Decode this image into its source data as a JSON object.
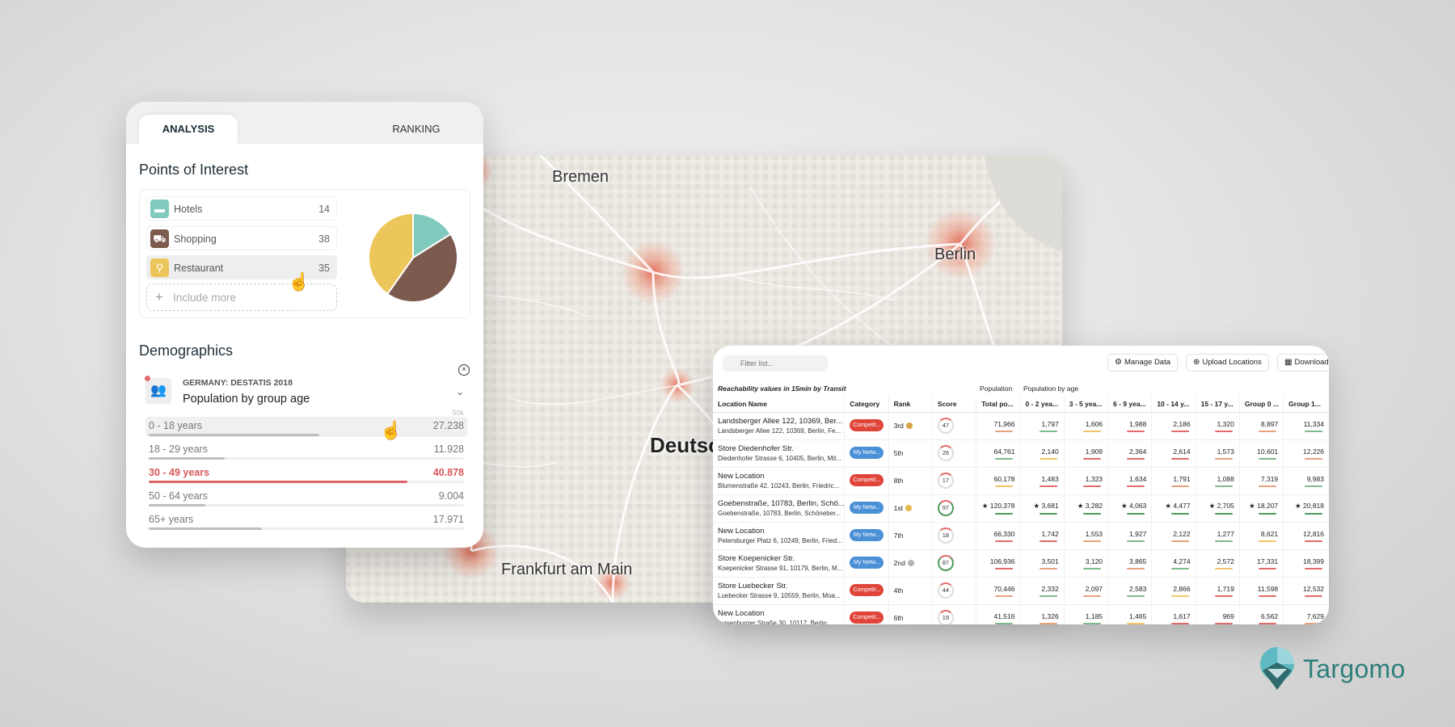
{
  "map": {
    "cities": [
      "Bremen",
      "Berlin",
      "Frankfurt am Main"
    ],
    "country_label": "Deutsc"
  },
  "analysis": {
    "tabs": [
      {
        "label": "ANALYSIS",
        "active": true
      },
      {
        "label": "RANKING",
        "active": false
      }
    ],
    "poi_title": "Points of Interest",
    "poi_items": [
      {
        "icon": "bed-icon",
        "label": "Hotels",
        "count": "14",
        "color": "#7fc9bd"
      },
      {
        "icon": "cart-icon",
        "label": "Shopping",
        "count": "38",
        "color": "#7c5a4e"
      },
      {
        "icon": "cutlery-icon",
        "label": "Restaurant",
        "count": "35",
        "color": "#ecc55b"
      }
    ],
    "include_more": "Include more",
    "demographics_title": "Demographics",
    "demographics_source": "GERMANY: DESTATIS 2018",
    "demographics_subtitle": "Population by group age",
    "scale_max": "50k",
    "age_groups": [
      {
        "label": "0 - 18 years",
        "value": "27.238",
        "fraction": 0.54
      },
      {
        "label": "18 - 29 years",
        "value": "11.928",
        "fraction": 0.24
      },
      {
        "label": "30 - 49 years",
        "value": "40.878",
        "fraction": 0.82,
        "max": true
      },
      {
        "label": "50 - 64 years",
        "value": "9.004",
        "fraction": 0.18
      },
      {
        "label": "65+ years",
        "value": "17.971",
        "fraction": 0.36
      }
    ]
  },
  "table_panel": {
    "filter_placeholder": "Filter list...",
    "buttons": {
      "manage": "Manage Data",
      "upload": "Upload Locations",
      "download": "Download"
    },
    "group_headers": {
      "reach": "Reachability values in 15min by Transit",
      "population": "Population",
      "age": "Population by age"
    },
    "columns": [
      "Location Name",
      "Category",
      "Rank",
      "Score",
      "Total po...",
      "0 - 2 yea...",
      "3 - 5 yea...",
      "6 - 9 yea...",
      "10 - 14 y...",
      "15 - 17 y...",
      "Group 0 ...",
      "Group 1..."
    ],
    "rows": [
      {
        "name": "Landsberger Allee 122, 10369, Ber...",
        "address": "Landsberger Allee 122, 10369, Berlin, Fe...",
        "category": "Competit...",
        "cat_color": "#e0453a",
        "rank": "3rd",
        "medal": "#d9a24a",
        "score": "47",
        "values": [
          "71,966",
          "1,797",
          "1,606",
          "1,988",
          "2,186",
          "1,320",
          "8,897",
          "11,334"
        ]
      },
      {
        "name": "Store Diedenhofer Str.",
        "address": "Diedenhofer Strasse 6, 10405, Berlin, Mit...",
        "category": "My Netw...",
        "cat_color": "#4a90d6",
        "rank": "5th",
        "medal": "",
        "score": "26",
        "values": [
          "64,761",
          "2,140",
          "1,909",
          "2,364",
          "2,614",
          "1,573",
          "10,601",
          "12,226"
        ]
      },
      {
        "name": "New Location",
        "address": "Blumenstraße 42, 10243, Berlin, Friedric...",
        "category": "Competit...",
        "cat_color": "#e0453a",
        "rank": "8th",
        "medal": "",
        "score": "17",
        "values": [
          "60,178",
          "1,483",
          "1,323",
          "1,634",
          "1,791",
          "1,088",
          "7,319",
          "9,983"
        ]
      },
      {
        "name": "Goebenstraße, 10783, Berlin, Schö...",
        "address": "Goebenstraße, 10783, Berlin, Schöneber...",
        "category": "My Netw...",
        "cat_color": "#4a90d6",
        "rank": "1st",
        "medal": "#e6b94a",
        "score": "97",
        "starred": true,
        "values": [
          "120,378",
          "3,681",
          "3,282",
          "4,063",
          "4,477",
          "2,705",
          "18,207",
          "20,818"
        ]
      },
      {
        "name": "New Location",
        "address": "Petersburger Platz 6, 10249, Berlin, Fried...",
        "category": "My Netw...",
        "cat_color": "#4a90d6",
        "rank": "7th",
        "medal": "",
        "score": "18",
        "values": [
          "66,330",
          "1,742",
          "1,553",
          "1,927",
          "2,122",
          "1,277",
          "8,621",
          "12,816"
        ]
      },
      {
        "name": "Store Koepenicker Str.",
        "address": "Koepenicker Strasse 91, 10179, Berlin, M...",
        "category": "My Netw...",
        "cat_color": "#4a90d6",
        "rank": "2nd",
        "medal": "#b5b5b5",
        "score": "87",
        "values": [
          "106,936",
          "3,501",
          "3,120",
          "3,865",
          "4,274",
          "2,572",
          "17,331",
          "18,399"
        ]
      },
      {
        "name": "Store Luebecker Str.",
        "address": "Luebecker Strasse 9, 10559, Berlin, Moa...",
        "category": "Competit...",
        "cat_color": "#e0453a",
        "rank": "4th",
        "medal": "",
        "score": "44",
        "values": [
          "70,446",
          "2,332",
          "2,097",
          "2,583",
          "2,866",
          "1,719",
          "11,598",
          "12,532"
        ]
      },
      {
        "name": "New Location",
        "address": "Luisenburger Straße 30, 10117, Berlin...",
        "category": "Competit...",
        "cat_color": "#e0453a",
        "rank": "6th",
        "medal": "",
        "score": "19",
        "values": [
          "41,516",
          "1,326",
          "1,185",
          "1,465",
          "1,617",
          "969",
          "6,562",
          "7,629"
        ]
      }
    ]
  },
  "brand": {
    "name": "Targomo"
  },
  "colors": {
    "accent": "#e06467",
    "good": "#4d9a5d",
    "brand": "#2f7f7b"
  }
}
